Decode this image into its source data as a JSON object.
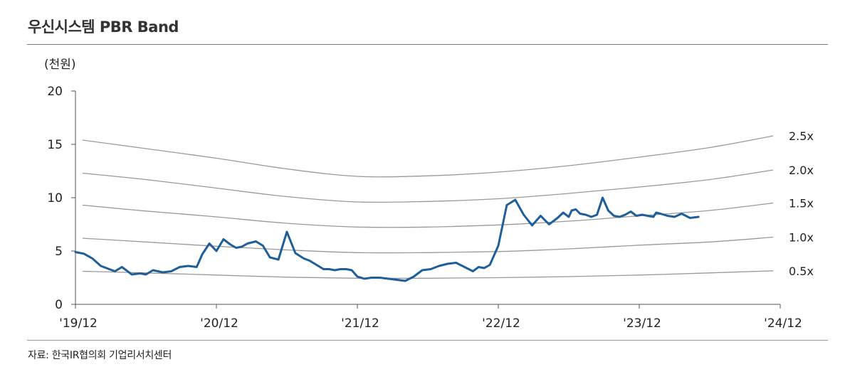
{
  "title": "우신시스템 PBR Band",
  "unit": "(천원)",
  "source": "자료: 한국IR협의회 기업리서치센터",
  "chart_data": {
    "type": "line",
    "x_ticks": [
      "'19/12",
      "'20/12",
      "'21/12",
      "'22/12",
      "'23/12",
      "'24/12"
    ],
    "y_ticks": [
      0,
      5,
      10,
      15,
      20
    ],
    "ylim": [
      0,
      20
    ],
    "xlim": [
      0,
      5
    ],
    "grid": false,
    "legend": "right-end labels",
    "series": [
      {
        "name": "2.5x",
        "color": "#999999",
        "x": [
          0.05,
          0.5,
          1.0,
          1.5,
          2.0,
          2.5,
          3.0,
          3.5,
          4.0,
          4.5,
          4.95
        ],
        "y": [
          15.4,
          14.6,
          13.7,
          12.7,
          12.0,
          12.05,
          12.4,
          13.0,
          13.8,
          14.7,
          15.8
        ]
      },
      {
        "name": "2.0x",
        "color": "#999999",
        "x": [
          0.05,
          0.5,
          1.0,
          1.5,
          2.0,
          2.5,
          3.0,
          3.5,
          4.0,
          4.5,
          4.95
        ],
        "y": [
          12.3,
          11.7,
          10.9,
          10.1,
          9.6,
          9.65,
          9.9,
          10.4,
          11.0,
          11.7,
          12.6
        ]
      },
      {
        "name": "1.5x",
        "color": "#999999",
        "x": [
          0.05,
          0.5,
          1.0,
          1.5,
          2.0,
          2.5,
          3.0,
          3.5,
          4.0,
          4.5,
          4.95
        ],
        "y": [
          9.3,
          8.75,
          8.2,
          7.6,
          7.25,
          7.25,
          7.45,
          7.8,
          8.3,
          8.8,
          9.5
        ]
      },
      {
        "name": "1.0x",
        "color": "#999999",
        "x": [
          0.05,
          0.5,
          1.0,
          1.5,
          2.0,
          2.5,
          3.0,
          3.5,
          4.0,
          4.5,
          4.95
        ],
        "y": [
          6.2,
          5.85,
          5.45,
          5.1,
          4.85,
          4.85,
          4.95,
          5.2,
          5.55,
          5.85,
          6.3
        ]
      },
      {
        "name": "0.5x",
        "color": "#999999",
        "x": [
          0.05,
          0.5,
          1.0,
          1.5,
          2.0,
          2.5,
          3.0,
          3.5,
          4.0,
          4.5,
          4.95
        ],
        "y": [
          3.1,
          2.95,
          2.75,
          2.55,
          2.45,
          2.45,
          2.5,
          2.6,
          2.75,
          2.95,
          3.15
        ]
      },
      {
        "name": "",
        "color": "#1f5f99",
        "x": [
          0.0,
          0.06,
          0.12,
          0.18,
          0.24,
          0.28,
          0.33,
          0.4,
          0.46,
          0.5,
          0.55,
          0.62,
          0.68,
          0.74,
          0.8,
          0.86,
          0.9,
          0.95,
          1.0,
          1.05,
          1.1,
          1.14,
          1.18,
          1.22,
          1.28,
          1.33,
          1.38,
          1.44,
          1.5,
          1.56,
          1.62,
          1.66,
          1.71,
          1.76,
          1.8,
          1.84,
          1.88,
          1.92,
          1.96,
          2.0,
          2.05,
          2.1,
          2.16,
          2.22,
          2.28,
          2.34,
          2.4,
          2.46,
          2.52,
          2.58,
          2.64,
          2.7,
          2.76,
          2.82,
          2.86,
          2.9,
          2.94,
          3.0,
          3.06,
          3.12,
          3.18,
          3.24,
          3.3,
          3.36,
          3.42,
          3.46,
          3.5,
          3.52,
          3.55,
          3.58,
          3.62,
          3.66,
          3.7,
          3.74,
          3.78,
          3.82,
          3.86,
          3.9,
          3.94,
          3.98,
          4.02,
          4.06,
          4.1,
          4.12,
          4.15,
          4.2,
          4.25,
          4.3,
          4.36,
          4.42
        ],
        "y": [
          4.9,
          4.75,
          4.3,
          3.6,
          3.3,
          3.1,
          3.5,
          2.8,
          2.9,
          2.8,
          3.2,
          3.0,
          3.1,
          3.5,
          3.6,
          3.5,
          4.7,
          5.7,
          5.0,
          6.1,
          5.6,
          5.3,
          5.4,
          5.7,
          5.9,
          5.5,
          4.4,
          4.2,
          6.8,
          4.8,
          4.3,
          4.1,
          3.7,
          3.3,
          3.3,
          3.2,
          3.3,
          3.3,
          3.2,
          2.6,
          2.4,
          2.5,
          2.5,
          2.4,
          2.3,
          2.2,
          2.6,
          3.2,
          3.3,
          3.6,
          3.8,
          3.9,
          3.5,
          3.1,
          3.5,
          3.4,
          3.7,
          5.5,
          9.3,
          9.8,
          8.4,
          7.4,
          8.3,
          7.5,
          8.1,
          8.6,
          8.2,
          8.8,
          8.9,
          8.5,
          8.4,
          8.2,
          8.4,
          10.0,
          8.8,
          8.3,
          8.2,
          8.4,
          8.7,
          8.3,
          8.4,
          8.3,
          8.2,
          8.6,
          8.5,
          8.3,
          8.2,
          8.5,
          8.1,
          8.2
        ]
      }
    ]
  }
}
